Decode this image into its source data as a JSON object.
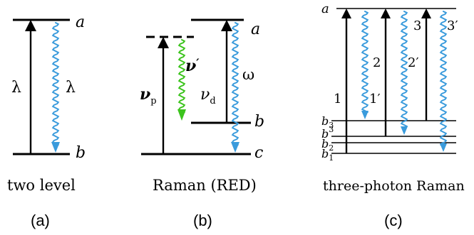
{
  "colors": {
    "line": "#000000",
    "emission_blue": "#3a9bdc",
    "stokes_green": "#3cc41d",
    "background": "#ffffff"
  },
  "panels": {
    "a": {
      "caption": "two level",
      "label": "(a)",
      "level_upper": "a",
      "level_lower": "b",
      "absorption_symbol": "λ",
      "emission_symbol": "λ"
    },
    "b": {
      "caption": "Raman (RED)",
      "label": "(b)",
      "level_top": "a",
      "level_mid": "b",
      "level_bottom": "c",
      "pump_symbol": "ν",
      "pump_sub": "p",
      "stokes_symbol": "ν",
      "stokes_mark": "′",
      "drive_symbol": "ν",
      "drive_sub": "d",
      "emission_symbol": "ω"
    },
    "c": {
      "caption": "three-photon Raman",
      "label": "(c)",
      "level_top": "a",
      "sub_levels": [
        {
          "base": "b",
          "sub": "3"
        },
        {
          "base": "b",
          "sub": "3"
        },
        {
          "base": "b",
          "sub": "2"
        },
        {
          "base": "b",
          "sub": "1"
        }
      ],
      "absorptions": [
        "1",
        "2",
        "3"
      ],
      "emissions": [
        "1′",
        "2′",
        "3′"
      ]
    }
  }
}
